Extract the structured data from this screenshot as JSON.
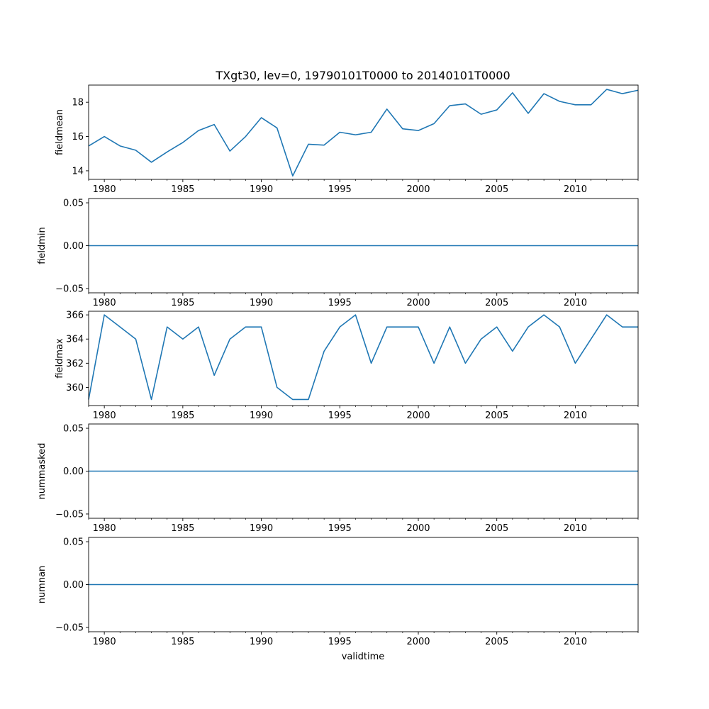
{
  "figure": {
    "title": "TXgt30, lev=0, 19790101T0000 to 20140101T0000",
    "xlabel": "validtime"
  },
  "colors": {
    "line": "#1f77b4",
    "axes": "#000000",
    "background": "#ffffff"
  },
  "chart_data": [
    {
      "type": "line",
      "ylabel": "fieldmean",
      "xlim": [
        1979,
        2014
      ],
      "ylim": [
        13.5,
        19.0
      ],
      "xticks": [
        1980,
        1985,
        1990,
        1995,
        2000,
        2005,
        2010
      ],
      "yticks": [
        14,
        16,
        18
      ],
      "ytick_labels": [
        "14",
        "16",
        "18"
      ],
      "grid": false,
      "x": [
        1979,
        1980,
        1981,
        1982,
        1983,
        1984,
        1985,
        1986,
        1987,
        1988,
        1989,
        1990,
        1991,
        1992,
        1993,
        1994,
        1995,
        1996,
        1997,
        1998,
        1999,
        2000,
        2001,
        2002,
        2003,
        2004,
        2005,
        2006,
        2007,
        2008,
        2009,
        2010,
        2011,
        2012,
        2013,
        2014
      ],
      "values": [
        15.45,
        16.0,
        15.45,
        15.2,
        14.5,
        15.1,
        15.65,
        16.35,
        16.7,
        15.15,
        16.0,
        17.1,
        16.5,
        13.7,
        15.55,
        15.5,
        16.25,
        16.1,
        16.25,
        17.6,
        16.45,
        16.35,
        16.75,
        17.8,
        17.9,
        17.3,
        17.55,
        18.55,
        17.35,
        18.5,
        18.05,
        17.85,
        17.85,
        18.75,
        18.5,
        18.7
      ]
    },
    {
      "type": "line",
      "ylabel": "fieldmin",
      "xlim": [
        1979,
        2014
      ],
      "ylim": [
        -0.055,
        0.055
      ],
      "xticks": [
        1980,
        1985,
        1990,
        1995,
        2000,
        2005,
        2010
      ],
      "yticks": [
        -0.05,
        0.0,
        0.05
      ],
      "ytick_labels": [
        "−0.05",
        "0.00",
        "0.05"
      ],
      "grid": false,
      "x": [
        1979,
        1980,
        1981,
        1982,
        1983,
        1984,
        1985,
        1986,
        1987,
        1988,
        1989,
        1990,
        1991,
        1992,
        1993,
        1994,
        1995,
        1996,
        1997,
        1998,
        1999,
        2000,
        2001,
        2002,
        2003,
        2004,
        2005,
        2006,
        2007,
        2008,
        2009,
        2010,
        2011,
        2012,
        2013,
        2014
      ],
      "values": [
        0,
        0,
        0,
        0,
        0,
        0,
        0,
        0,
        0,
        0,
        0,
        0,
        0,
        0,
        0,
        0,
        0,
        0,
        0,
        0,
        0,
        0,
        0,
        0,
        0,
        0,
        0,
        0,
        0,
        0,
        0,
        0,
        0,
        0,
        0,
        0
      ]
    },
    {
      "type": "line",
      "ylabel": "fieldmax",
      "xlim": [
        1979,
        2014
      ],
      "ylim": [
        358.5,
        366.3
      ],
      "xticks": [
        1980,
        1985,
        1990,
        1995,
        2000,
        2005,
        2010
      ],
      "yticks": [
        360,
        362,
        364,
        366
      ],
      "ytick_labels": [
        "360",
        "362",
        "364",
        "366"
      ],
      "grid": false,
      "x": [
        1979,
        1980,
        1981,
        1982,
        1983,
        1984,
        1985,
        1986,
        1987,
        1988,
        1989,
        1990,
        1991,
        1992,
        1993,
        1994,
        1995,
        1996,
        1997,
        1998,
        1999,
        2000,
        2001,
        2002,
        2003,
        2004,
        2005,
        2006,
        2007,
        2008,
        2009,
        2010,
        2011,
        2012,
        2013,
        2014
      ],
      "values": [
        359,
        366,
        365,
        364,
        359,
        365,
        364,
        365,
        361,
        364,
        365,
        365,
        360,
        359,
        359,
        363,
        365,
        366,
        362,
        365,
        365,
        365,
        362,
        365,
        362,
        364,
        365,
        363,
        365,
        366,
        365,
        362,
        364,
        366,
        365,
        365
      ]
    },
    {
      "type": "line",
      "ylabel": "nummasked",
      "xlim": [
        1979,
        2014
      ],
      "ylim": [
        -0.055,
        0.055
      ],
      "xticks": [
        1980,
        1985,
        1990,
        1995,
        2000,
        2005,
        2010
      ],
      "yticks": [
        -0.05,
        0.0,
        0.05
      ],
      "ytick_labels": [
        "−0.05",
        "0.00",
        "0.05"
      ],
      "grid": false,
      "x": [
        1979,
        1980,
        1981,
        1982,
        1983,
        1984,
        1985,
        1986,
        1987,
        1988,
        1989,
        1990,
        1991,
        1992,
        1993,
        1994,
        1995,
        1996,
        1997,
        1998,
        1999,
        2000,
        2001,
        2002,
        2003,
        2004,
        2005,
        2006,
        2007,
        2008,
        2009,
        2010,
        2011,
        2012,
        2013,
        2014
      ],
      "values": [
        0,
        0,
        0,
        0,
        0,
        0,
        0,
        0,
        0,
        0,
        0,
        0,
        0,
        0,
        0,
        0,
        0,
        0,
        0,
        0,
        0,
        0,
        0,
        0,
        0,
        0,
        0,
        0,
        0,
        0,
        0,
        0,
        0,
        0,
        0,
        0
      ]
    },
    {
      "type": "line",
      "ylabel": "numnan",
      "xlim": [
        1979,
        2014
      ],
      "ylim": [
        -0.055,
        0.055
      ],
      "xticks": [
        1980,
        1985,
        1990,
        1995,
        2000,
        2005,
        2010
      ],
      "yticks": [
        -0.05,
        0.0,
        0.05
      ],
      "ytick_labels": [
        "−0.05",
        "0.00",
        "0.05"
      ],
      "grid": false,
      "x": [
        1979,
        1980,
        1981,
        1982,
        1983,
        1984,
        1985,
        1986,
        1987,
        1988,
        1989,
        1990,
        1991,
        1992,
        1993,
        1994,
        1995,
        1996,
        1997,
        1998,
        1999,
        2000,
        2001,
        2002,
        2003,
        2004,
        2005,
        2006,
        2007,
        2008,
        2009,
        2010,
        2011,
        2012,
        2013,
        2014
      ],
      "values": [
        0,
        0,
        0,
        0,
        0,
        0,
        0,
        0,
        0,
        0,
        0,
        0,
        0,
        0,
        0,
        0,
        0,
        0,
        0,
        0,
        0,
        0,
        0,
        0,
        0,
        0,
        0,
        0,
        0,
        0,
        0,
        0,
        0,
        0,
        0,
        0
      ]
    }
  ]
}
